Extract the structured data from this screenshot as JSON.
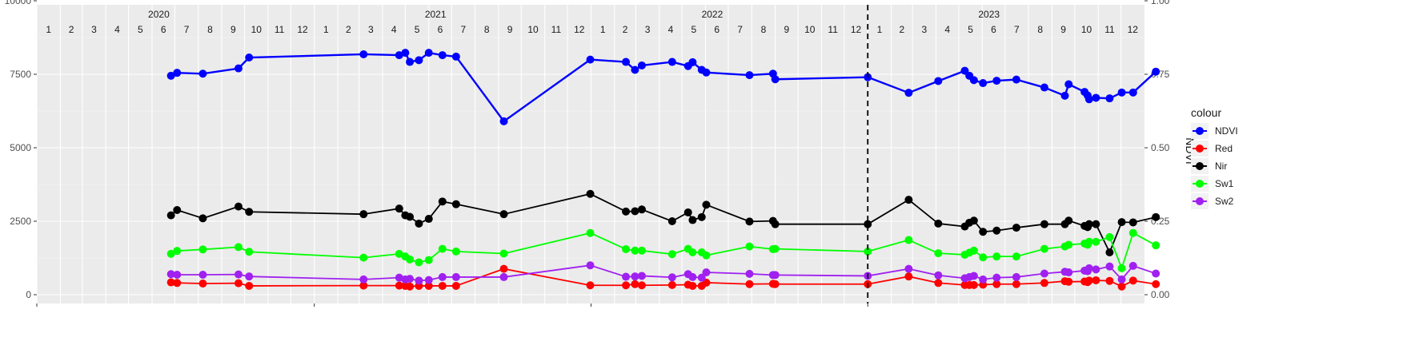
{
  "chart_data": {
    "type": "line",
    "ylabel_right": "NDVI",
    "ylim": [
      0,
      10000
    ],
    "y_ticks_left": [
      0,
      2500,
      5000,
      7500,
      10000
    ],
    "y_tick_labels_left": [
      "0",
      "2500",
      "5000",
      "7500",
      "10000"
    ],
    "y_ticks_right": [
      0,
      0.25,
      0.5,
      0.75,
      1.0
    ],
    "y_tick_labels_right": [
      "0.00",
      "0.25",
      "0.50",
      "0.75",
      "1.00"
    ],
    "xlim": [
      "2020-01-01",
      "2024-01-01"
    ],
    "years": [
      {
        "label": "2020",
        "date": "2020-07-01"
      },
      {
        "label": "2021",
        "date": "2021-07-01"
      },
      {
        "label": "2022",
        "date": "2022-07-01"
      },
      {
        "label": "2023",
        "date": "2023-07-01"
      }
    ],
    "month_labels": [
      "1",
      "2",
      "3",
      "4",
      "5",
      "6",
      "7",
      "8",
      "9",
      "10",
      "11",
      "12"
    ],
    "x_major_ticks": [
      "2020-01-01",
      "2021-01-01",
      "2022-01-01",
      "2023-01-01"
    ],
    "vline": "2023-01-01",
    "grid": true,
    "legend_title": "colour",
    "legend_position": "right",
    "series": [
      {
        "name": "NDVI",
        "color": "#0000FF",
        "points": [
          [
            "2020-06-26",
            7450
          ],
          [
            "2020-07-04",
            7550
          ],
          [
            "2020-08-07",
            7520
          ],
          [
            "2020-09-23",
            7700
          ],
          [
            "2020-10-07",
            8070
          ],
          [
            "2021-03-07",
            8180
          ],
          [
            "2021-04-23",
            8150
          ],
          [
            "2021-05-01",
            8230
          ],
          [
            "2021-05-07",
            7920
          ],
          [
            "2021-05-19",
            7980
          ],
          [
            "2021-06-01",
            8230
          ],
          [
            "2021-06-19",
            8150
          ],
          [
            "2021-07-07",
            8100
          ],
          [
            "2021-09-08",
            5900
          ],
          [
            "2021-12-31",
            8000
          ],
          [
            "2022-02-16",
            7920
          ],
          [
            "2022-02-28",
            7650
          ],
          [
            "2022-03-09",
            7800
          ],
          [
            "2022-04-18",
            7920
          ],
          [
            "2022-05-09",
            7780
          ],
          [
            "2022-05-15",
            7910
          ],
          [
            "2022-05-27",
            7650
          ],
          [
            "2022-06-02",
            7560
          ],
          [
            "2022-07-29",
            7470
          ],
          [
            "2022-08-29",
            7520
          ],
          [
            "2022-09-01",
            7330
          ],
          [
            "2023-01-01",
            7400
          ],
          [
            "2023-02-24",
            6870
          ],
          [
            "2023-04-04",
            7270
          ],
          [
            "2023-05-09",
            7620
          ],
          [
            "2023-05-15",
            7450
          ],
          [
            "2023-05-21",
            7300
          ],
          [
            "2023-06-02",
            7200
          ],
          [
            "2023-06-20",
            7280
          ],
          [
            "2023-07-16",
            7320
          ],
          [
            "2023-08-22",
            7050
          ],
          [
            "2023-09-18",
            6770
          ],
          [
            "2023-09-23",
            7160
          ],
          [
            "2023-10-14",
            6900
          ],
          [
            "2023-10-18",
            6780
          ],
          [
            "2023-10-20",
            6650
          ],
          [
            "2023-10-29",
            6700
          ],
          [
            "2023-11-16",
            6680
          ],
          [
            "2023-12-02",
            6880
          ],
          [
            "2023-12-17",
            6880
          ],
          [
            "2024-01-16",
            7590
          ]
        ]
      },
      {
        "name": "Red",
        "color": "#FF0000",
        "points": [
          [
            "2020-06-26",
            420
          ],
          [
            "2020-07-04",
            400
          ],
          [
            "2020-08-07",
            380
          ],
          [
            "2020-09-23",
            390
          ],
          [
            "2020-10-07",
            300
          ],
          [
            "2021-03-07",
            310
          ],
          [
            "2021-04-23",
            310
          ],
          [
            "2021-05-01",
            300
          ],
          [
            "2021-05-07",
            280
          ],
          [
            "2021-05-19",
            300
          ],
          [
            "2021-06-01",
            300
          ],
          [
            "2021-06-19",
            300
          ],
          [
            "2021-07-07",
            300
          ],
          [
            "2021-09-08",
            880
          ],
          [
            "2021-12-31",
            320
          ],
          [
            "2022-02-16",
            320
          ],
          [
            "2022-02-28",
            360
          ],
          [
            "2022-03-09",
            320
          ],
          [
            "2022-04-18",
            330
          ],
          [
            "2022-05-09",
            340
          ],
          [
            "2022-05-15",
            300
          ],
          [
            "2022-05-27",
            300
          ],
          [
            "2022-06-02",
            410
          ],
          [
            "2022-07-29",
            360
          ],
          [
            "2022-08-29",
            370
          ],
          [
            "2022-09-01",
            360
          ],
          [
            "2023-01-01",
            360
          ],
          [
            "2023-02-24",
            620
          ],
          [
            "2023-04-04",
            400
          ],
          [
            "2023-05-09",
            330
          ],
          [
            "2023-05-15",
            330
          ],
          [
            "2023-05-21",
            330
          ],
          [
            "2023-06-02",
            340
          ],
          [
            "2023-06-20",
            360
          ],
          [
            "2023-07-16",
            360
          ],
          [
            "2023-08-22",
            400
          ],
          [
            "2023-09-18",
            460
          ],
          [
            "2023-09-23",
            440
          ],
          [
            "2023-10-14",
            450
          ],
          [
            "2023-10-18",
            430
          ],
          [
            "2023-10-20",
            480
          ],
          [
            "2023-10-29",
            490
          ],
          [
            "2023-11-16",
            470
          ],
          [
            "2023-12-02",
            280
          ],
          [
            "2023-12-17",
            480
          ],
          [
            "2024-01-16",
            360
          ]
        ]
      },
      {
        "name": "Nir",
        "color": "#000000",
        "points": [
          [
            "2020-06-26",
            2700
          ],
          [
            "2020-07-04",
            2880
          ],
          [
            "2020-08-07",
            2600
          ],
          [
            "2020-09-23",
            3000
          ],
          [
            "2020-10-07",
            2820
          ],
          [
            "2021-03-07",
            2740
          ],
          [
            "2021-04-23",
            2930
          ],
          [
            "2021-05-01",
            2700
          ],
          [
            "2021-05-07",
            2650
          ],
          [
            "2021-05-19",
            2420
          ],
          [
            "2021-06-01",
            2580
          ],
          [
            "2021-06-19",
            3170
          ],
          [
            "2021-07-07",
            3080
          ],
          [
            "2021-09-08",
            2740
          ],
          [
            "2021-12-31",
            3430
          ],
          [
            "2022-02-16",
            2830
          ],
          [
            "2022-02-28",
            2840
          ],
          [
            "2022-03-09",
            2900
          ],
          [
            "2022-04-18",
            2500
          ],
          [
            "2022-05-09",
            2800
          ],
          [
            "2022-05-15",
            2540
          ],
          [
            "2022-05-27",
            2640
          ],
          [
            "2022-06-02",
            3060
          ],
          [
            "2022-07-29",
            2490
          ],
          [
            "2022-08-29",
            2510
          ],
          [
            "2022-09-01",
            2400
          ],
          [
            "2023-01-01",
            2400
          ],
          [
            "2023-02-24",
            3230
          ],
          [
            "2023-04-04",
            2420
          ],
          [
            "2023-05-09",
            2320
          ],
          [
            "2023-05-15",
            2450
          ],
          [
            "2023-05-21",
            2520
          ],
          [
            "2023-06-02",
            2140
          ],
          [
            "2023-06-20",
            2180
          ],
          [
            "2023-07-16",
            2280
          ],
          [
            "2023-08-22",
            2400
          ],
          [
            "2023-09-18",
            2400
          ],
          [
            "2023-09-23",
            2520
          ],
          [
            "2023-10-14",
            2340
          ],
          [
            "2023-10-18",
            2300
          ],
          [
            "2023-10-20",
            2400
          ],
          [
            "2023-10-29",
            2400
          ],
          [
            "2023-11-16",
            1440
          ],
          [
            "2023-12-02",
            2470
          ],
          [
            "2023-12-17",
            2460
          ],
          [
            "2024-01-16",
            2640
          ]
        ]
      },
      {
        "name": "Sw1",
        "color": "#00FF00",
        "points": [
          [
            "2020-06-26",
            1390
          ],
          [
            "2020-07-04",
            1490
          ],
          [
            "2020-08-07",
            1540
          ],
          [
            "2020-09-23",
            1620
          ],
          [
            "2020-10-07",
            1460
          ],
          [
            "2021-03-07",
            1260
          ],
          [
            "2021-04-23",
            1390
          ],
          [
            "2021-05-01",
            1300
          ],
          [
            "2021-05-07",
            1200
          ],
          [
            "2021-05-19",
            1100
          ],
          [
            "2021-06-01",
            1180
          ],
          [
            "2021-06-19",
            1560
          ],
          [
            "2021-07-07",
            1470
          ],
          [
            "2021-09-08",
            1400
          ],
          [
            "2021-12-31",
            2100
          ],
          [
            "2022-02-16",
            1550
          ],
          [
            "2022-02-28",
            1500
          ],
          [
            "2022-03-09",
            1500
          ],
          [
            "2022-04-18",
            1380
          ],
          [
            "2022-05-09",
            1560
          ],
          [
            "2022-05-15",
            1440
          ],
          [
            "2022-05-27",
            1440
          ],
          [
            "2022-06-02",
            1340
          ],
          [
            "2022-07-29",
            1640
          ],
          [
            "2022-08-29",
            1550
          ],
          [
            "2022-09-01",
            1560
          ],
          [
            "2023-01-01",
            1470
          ],
          [
            "2023-02-24",
            1860
          ],
          [
            "2023-04-04",
            1410
          ],
          [
            "2023-05-09",
            1360
          ],
          [
            "2023-05-15",
            1430
          ],
          [
            "2023-05-21",
            1500
          ],
          [
            "2023-06-02",
            1270
          ],
          [
            "2023-06-20",
            1300
          ],
          [
            "2023-07-16",
            1300
          ],
          [
            "2023-08-22",
            1560
          ],
          [
            "2023-09-18",
            1640
          ],
          [
            "2023-09-23",
            1700
          ],
          [
            "2023-10-14",
            1740
          ],
          [
            "2023-10-18",
            1700
          ],
          [
            "2023-10-20",
            1800
          ],
          [
            "2023-10-29",
            1800
          ],
          [
            "2023-11-16",
            1960
          ],
          [
            "2023-12-02",
            900
          ],
          [
            "2023-12-17",
            2100
          ],
          [
            "2024-01-16",
            1680
          ]
        ]
      },
      {
        "name": "Sw2",
        "color": "#A020F0",
        "points": [
          [
            "2020-06-26",
            700
          ],
          [
            "2020-07-04",
            680
          ],
          [
            "2020-08-07",
            680
          ],
          [
            "2020-09-23",
            690
          ],
          [
            "2020-10-07",
            620
          ],
          [
            "2021-03-07",
            520
          ],
          [
            "2021-04-23",
            580
          ],
          [
            "2021-05-01",
            520
          ],
          [
            "2021-05-07",
            540
          ],
          [
            "2021-05-19",
            480
          ],
          [
            "2021-06-01",
            500
          ],
          [
            "2021-06-19",
            600
          ],
          [
            "2021-07-07",
            600
          ],
          [
            "2021-09-08",
            600
          ],
          [
            "2021-12-31",
            1000
          ],
          [
            "2022-02-16",
            610
          ],
          [
            "2022-02-28",
            620
          ],
          [
            "2022-03-09",
            640
          ],
          [
            "2022-04-18",
            590
          ],
          [
            "2022-05-09",
            700
          ],
          [
            "2022-05-15",
            600
          ],
          [
            "2022-05-27",
            580
          ],
          [
            "2022-06-02",
            760
          ],
          [
            "2022-07-29",
            710
          ],
          [
            "2022-08-29",
            670
          ],
          [
            "2022-09-01",
            670
          ],
          [
            "2023-01-01",
            640
          ],
          [
            "2023-02-24",
            880
          ],
          [
            "2023-04-04",
            660
          ],
          [
            "2023-05-09",
            560
          ],
          [
            "2023-05-15",
            600
          ],
          [
            "2023-05-21",
            640
          ],
          [
            "2023-06-02",
            520
          ],
          [
            "2023-06-20",
            580
          ],
          [
            "2023-07-16",
            600
          ],
          [
            "2023-08-22",
            720
          ],
          [
            "2023-09-18",
            780
          ],
          [
            "2023-09-23",
            760
          ],
          [
            "2023-10-14",
            820
          ],
          [
            "2023-10-18",
            800
          ],
          [
            "2023-10-20",
            900
          ],
          [
            "2023-10-29",
            860
          ],
          [
            "2023-11-16",
            960
          ],
          [
            "2023-12-02",
            520
          ],
          [
            "2023-12-17",
            980
          ],
          [
            "2024-01-16",
            720
          ]
        ]
      }
    ]
  }
}
